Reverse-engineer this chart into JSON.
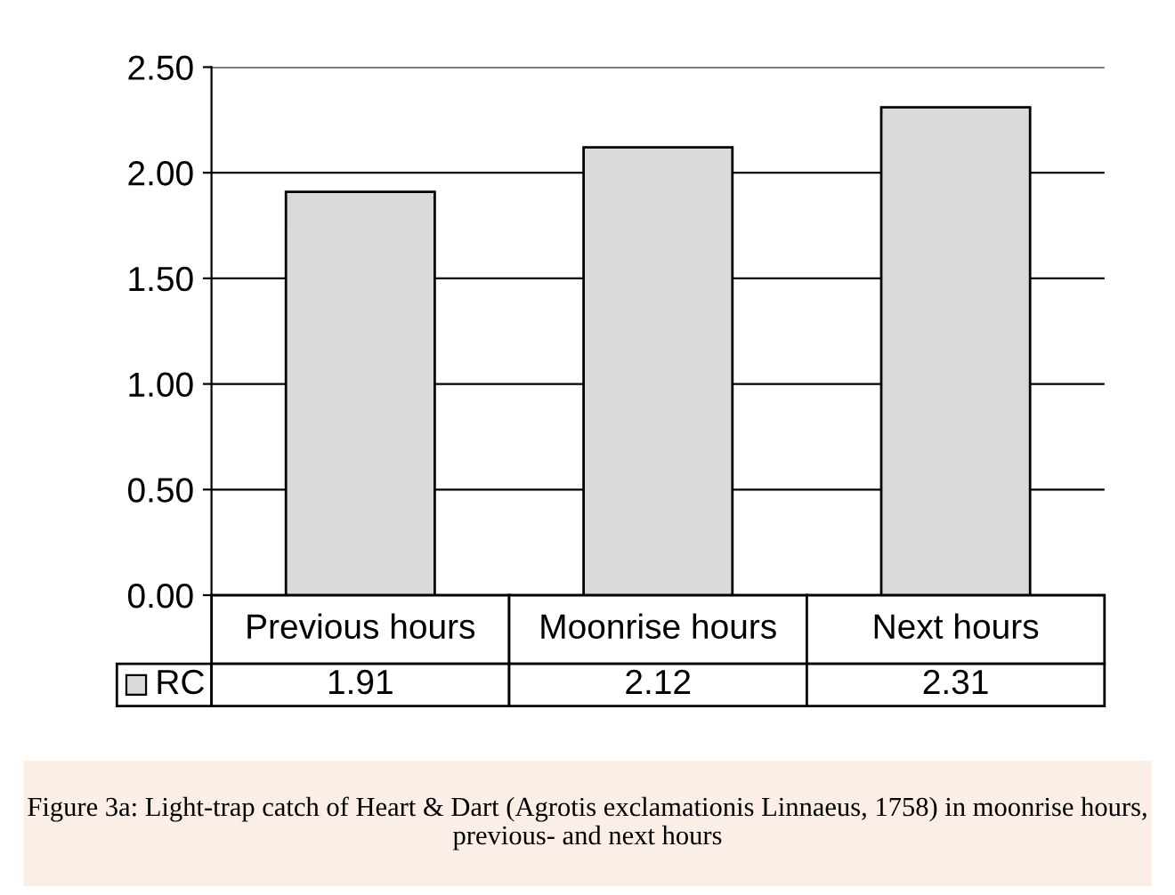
{
  "chart_data": {
    "type": "bar",
    "categories": [
      "Previous hours",
      "Moonrise hours",
      "Next hours"
    ],
    "series": [
      {
        "name": "RC",
        "color": "#d9d9d9",
        "values": [
          1.91,
          2.12,
          2.31
        ]
      }
    ],
    "ylim": [
      0,
      2.5
    ],
    "yticks": [
      {
        "value": 0,
        "label": "0.00"
      },
      {
        "value": 0.5,
        "label": "0.50"
      },
      {
        "value": 1,
        "label": "1.00"
      },
      {
        "value": 1.5,
        "label": "1.50"
      },
      {
        "value": 2,
        "label": "2.00"
      },
      {
        "value": 2.5,
        "label": "2.50"
      }
    ],
    "grid": "y",
    "data_labels": true,
    "legend": "bottom left",
    "annotations": [
      "Figure 3a: Light-trap catch of Heart & Dart (Agrotis exclamationis Linnaeus, 1758) in moonrise hours, previous- and next hours"
    ]
  }
}
